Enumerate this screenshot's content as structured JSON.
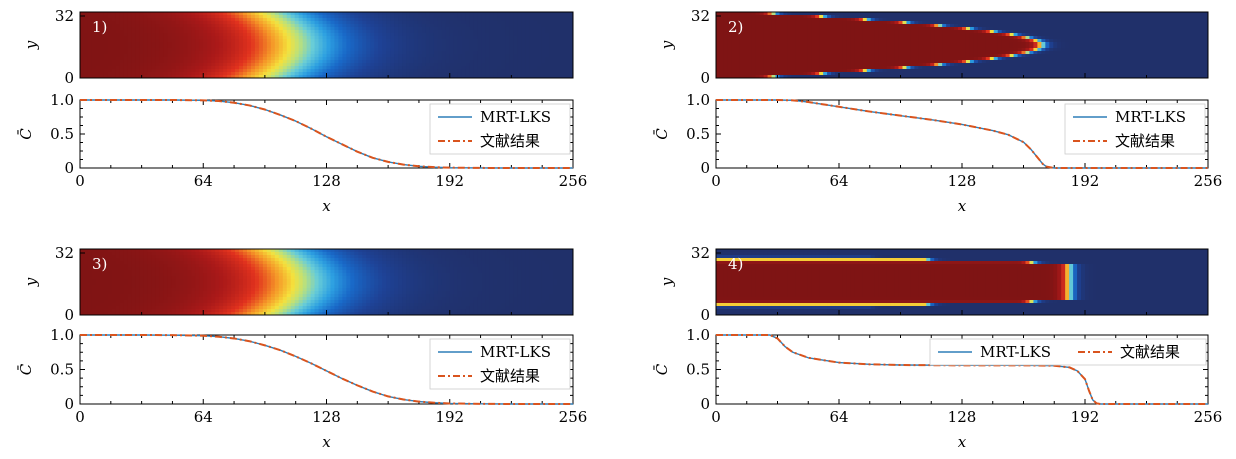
{
  "colors": {
    "mrt_lks": "#2f7fb8",
    "literature": "#d9541e",
    "field_high": "#7f1414",
    "field_low": "#20306a"
  },
  "axis_labels": {
    "x": "x",
    "y": "y",
    "c": "C̄"
  },
  "chart_data": [
    {
      "type": "line",
      "panel_label": "1)",
      "field_pattern": "diffuse front, slightly convex",
      "x_ticks": [
        "0",
        "64",
        "128",
        "192",
        "256"
      ],
      "y_ticks_field": [
        "0",
        "32"
      ],
      "y_ticks_profile": [
        "0",
        "0.5",
        "1.0"
      ],
      "xlabel": "x",
      "ylabel_field": "y",
      "ylabel_profile": "C̄",
      "xlim": [
        0,
        256
      ],
      "ylim": [
        0,
        1
      ],
      "legend_position": "right",
      "x": [
        0,
        16,
        32,
        48,
        64,
        72,
        80,
        88,
        96,
        104,
        112,
        120,
        128,
        136,
        144,
        152,
        160,
        168,
        176,
        184,
        192,
        208,
        224,
        240,
        256
      ],
      "series": [
        {
          "name": "MRT-LKS",
          "style": "solid",
          "values": [
            1,
            1,
            1,
            1,
            0.995,
            0.985,
            0.96,
            0.92,
            0.86,
            0.78,
            0.69,
            0.58,
            0.46,
            0.35,
            0.24,
            0.15,
            0.09,
            0.05,
            0.025,
            0.012,
            0.005,
            0.001,
            0,
            0,
            0
          ]
        },
        {
          "name": "文献结果",
          "style": "dashdot",
          "values": [
            1,
            1,
            1,
            1,
            0.995,
            0.985,
            0.96,
            0.92,
            0.86,
            0.78,
            0.69,
            0.58,
            0.46,
            0.35,
            0.24,
            0.15,
            0.09,
            0.05,
            0.025,
            0.012,
            0.005,
            0.001,
            0,
            0,
            0
          ]
        }
      ]
    },
    {
      "type": "line",
      "panel_label": "2)",
      "field_pattern": "finger, single parabolic tongue",
      "x_ticks": [
        "0",
        "64",
        "128",
        "192",
        "256"
      ],
      "y_ticks_field": [
        "0",
        "32"
      ],
      "y_ticks_profile": [
        "0",
        "0.5",
        "1.0"
      ],
      "xlabel": "x",
      "ylabel_field": "y",
      "ylabel_profile": "C̄",
      "xlim": [
        0,
        256
      ],
      "ylim": [
        0,
        1
      ],
      "legend_position": "top-right",
      "x": [
        0,
        16,
        32,
        40,
        48,
        64,
        80,
        96,
        112,
        128,
        144,
        152,
        160,
        164,
        168,
        170,
        172,
        176,
        192,
        224,
        256
      ],
      "series": [
        {
          "name": "MRT-LKS",
          "style": "solid",
          "values": [
            1,
            1,
            1,
            0.995,
            0.97,
            0.9,
            0.83,
            0.77,
            0.71,
            0.64,
            0.55,
            0.49,
            0.38,
            0.27,
            0.13,
            0.06,
            0.02,
            0,
            0,
            0,
            0
          ]
        },
        {
          "name": "文献结果",
          "style": "dashdot",
          "values": [
            1,
            1,
            1,
            0.995,
            0.97,
            0.9,
            0.83,
            0.77,
            0.71,
            0.64,
            0.55,
            0.49,
            0.38,
            0.27,
            0.13,
            0.06,
            0.02,
            0,
            0,
            0,
            0
          ]
        }
      ]
    },
    {
      "type": "line",
      "panel_label": "3)",
      "field_pattern": "diffuse front, slightly convex",
      "x_ticks": [
        "0",
        "64",
        "128",
        "192",
        "256"
      ],
      "y_ticks_field": [
        "0",
        "32"
      ],
      "y_ticks_profile": [
        "0",
        "0.5",
        "1.0"
      ],
      "xlabel": "x",
      "ylabel_field": "y",
      "ylabel_profile": "C̄",
      "xlim": [
        0,
        256
      ],
      "ylim": [
        0,
        1
      ],
      "legend_position": "right",
      "x": [
        0,
        16,
        32,
        48,
        64,
        72,
        80,
        88,
        96,
        104,
        112,
        120,
        128,
        136,
        144,
        152,
        160,
        168,
        176,
        184,
        192,
        208,
        224,
        240,
        256
      ],
      "series": [
        {
          "name": "MRT-LKS",
          "style": "solid",
          "values": [
            1,
            1,
            1,
            0.998,
            0.99,
            0.975,
            0.95,
            0.91,
            0.85,
            0.78,
            0.69,
            0.59,
            0.48,
            0.37,
            0.27,
            0.18,
            0.11,
            0.065,
            0.035,
            0.018,
            0.008,
            0.002,
            0,
            0,
            0
          ]
        },
        {
          "name": "文献结果",
          "style": "dashdot",
          "values": [
            1,
            1,
            1,
            0.998,
            0.99,
            0.975,
            0.95,
            0.91,
            0.85,
            0.78,
            0.69,
            0.59,
            0.48,
            0.37,
            0.27,
            0.18,
            0.11,
            0.065,
            0.035,
            0.018,
            0.008,
            0.002,
            0,
            0,
            0
          ]
        }
      ]
    },
    {
      "type": "line",
      "panel_label": "4)",
      "field_pattern": "channel, two wall layers around a central tongue",
      "x_ticks": [
        "0",
        "64",
        "128",
        "192",
        "256"
      ],
      "y_ticks_field": [
        "0",
        "32"
      ],
      "y_ticks_profile": [
        "0",
        "0.5",
        "1.0"
      ],
      "xlabel": "x",
      "ylabel_field": "y",
      "ylabel_profile": "C̄",
      "xlim": [
        0,
        256
      ],
      "ylim": [
        0,
        1
      ],
      "legend_position": "top",
      "x": [
        0,
        16,
        28,
        32,
        36,
        40,
        48,
        64,
        80,
        96,
        128,
        160,
        176,
        184,
        188,
        192,
        194,
        196,
        198,
        200,
        224,
        256
      ],
      "series": [
        {
          "name": "MRT-LKS",
          "style": "solid",
          "values": [
            1,
            1,
            1,
            0.95,
            0.83,
            0.75,
            0.67,
            0.6,
            0.575,
            0.565,
            0.56,
            0.56,
            0.555,
            0.53,
            0.48,
            0.36,
            0.2,
            0.06,
            0.01,
            0,
            0,
            0
          ]
        },
        {
          "name": "文献结果",
          "style": "dashdot",
          "values": [
            1,
            1,
            1,
            0.95,
            0.83,
            0.75,
            0.67,
            0.6,
            0.575,
            0.565,
            0.56,
            0.56,
            0.555,
            0.53,
            0.48,
            0.36,
            0.2,
            0.06,
            0.01,
            0,
            0,
            0
          ]
        }
      ]
    }
  ]
}
